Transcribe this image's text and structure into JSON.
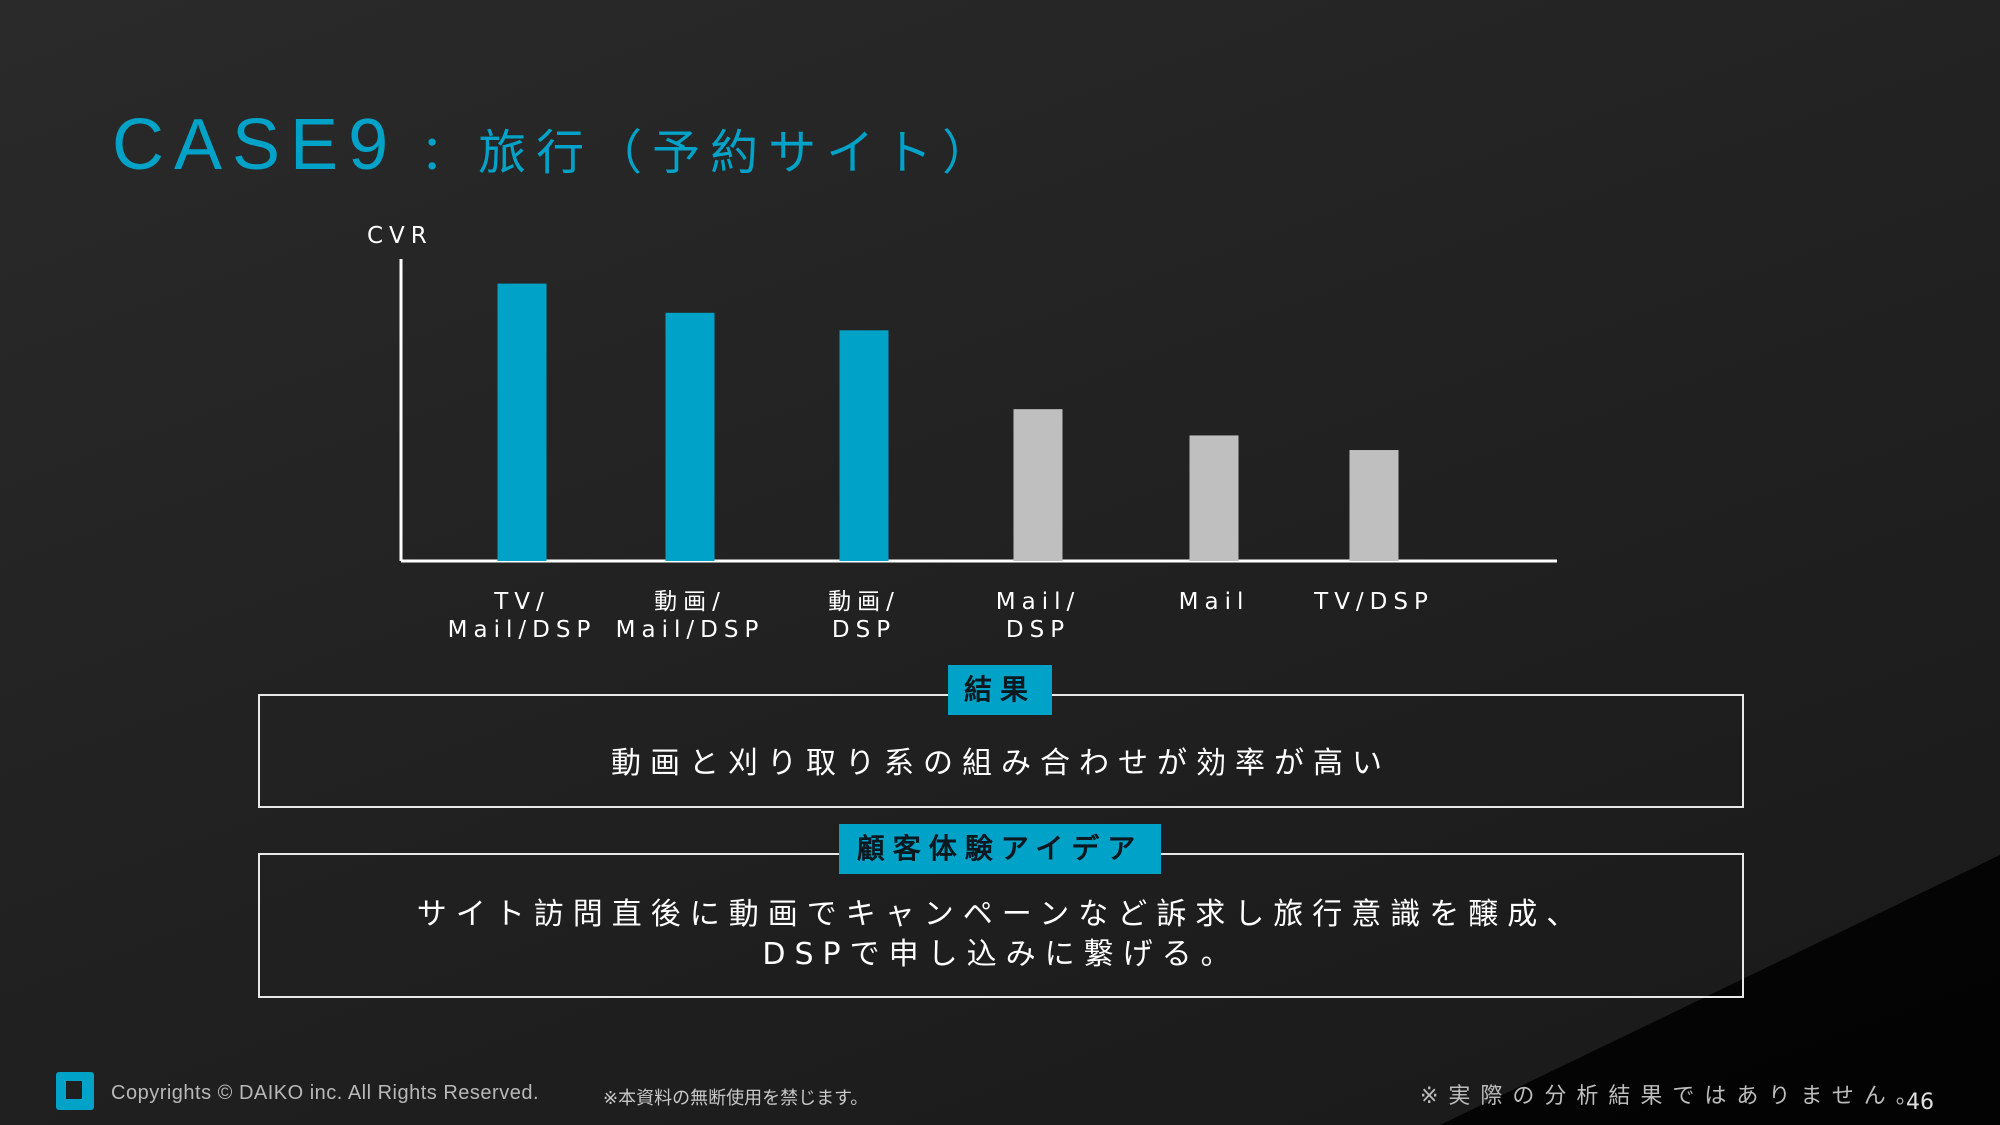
{
  "colors": {
    "accent": "#00a3c7",
    "muted": "#bfbfbf",
    "axis": "#ffffff"
  },
  "title": {
    "case": "CASE9",
    "subtitle": "：旅行（予約サイト）"
  },
  "chart_data": {
    "type": "bar",
    "ylabel": "CVR",
    "xlabel": "",
    "ylim": [
      0,
      100
    ],
    "grid": false,
    "categories": [
      [
        "TV/",
        "Mail/DSP"
      ],
      [
        "動画/",
        "Mail/DSP"
      ],
      [
        "動画/",
        "DSP"
      ],
      [
        "Mail/",
        "DSP"
      ],
      [
        "Mail"
      ],
      [
        "TV/DSP"
      ]
    ],
    "values": [
      95,
      85,
      79,
      52,
      43,
      38
    ],
    "highlight": [
      true,
      true,
      true,
      false,
      false,
      false
    ]
  },
  "result": {
    "tag": "結果",
    "text": "動画と刈り取り系の組み合わせが効率が高い"
  },
  "idea": {
    "tag": "顧客体験アイデア",
    "text": "サイト訪問直後に動画でキャンペーンなど訴求し旅行意識を醸成、\nDSPで申し込みに繋げる。"
  },
  "footer": {
    "logo_icon": "daiko-logo-icon",
    "copyright": "Copyrights © DAIKO inc. All Rights Reserved.",
    "notice": "※本資料の無断使用を禁じます。",
    "disclaimer": "※実際の分析結果ではありません。",
    "page_number": "46"
  }
}
